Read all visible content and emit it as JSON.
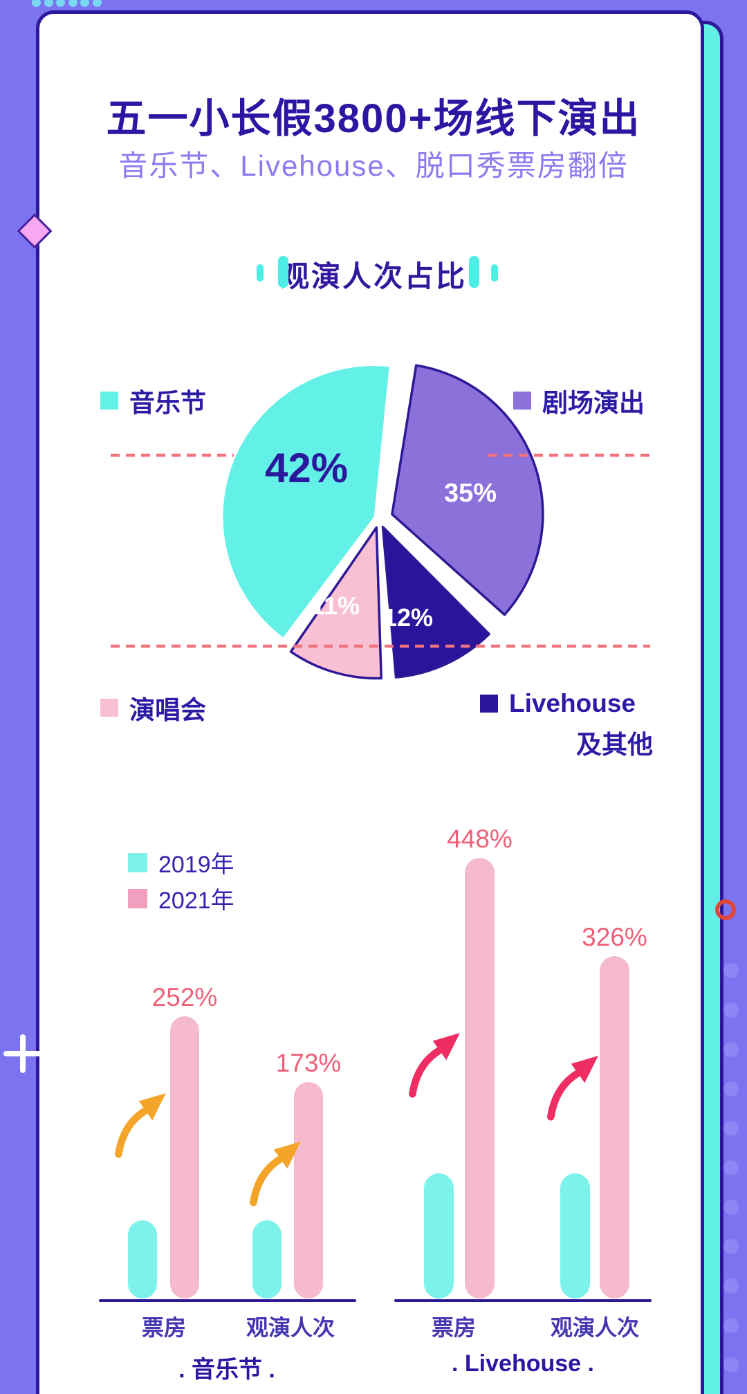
{
  "header": {
    "title": "五一小长假3800+场线下演出",
    "subtitle": "音乐节、Livehouse、脱口秀票房翻倍"
  },
  "pie_section": {
    "header": "观演人次占比",
    "legend": [
      {
        "label": "音乐节",
        "color": "#63F0E6"
      },
      {
        "label": "剧场演出",
        "color": "#8C71DB"
      },
      {
        "label": "演唱会",
        "color": "#F8C0D2"
      },
      {
        "label": "Livehouse",
        "label_line2": "及其他",
        "color": "#2B149B"
      }
    ]
  },
  "bar_section": {
    "legend": [
      {
        "label": "2019年",
        "color": "#7DF2EA"
      },
      {
        "label": "2021年",
        "color": "#F09FBE"
      }
    ]
  },
  "chart_data": [
    {
      "type": "pie",
      "title": "观演人次占比",
      "slices": [
        {
          "label": "音乐节",
          "value": 42,
          "display": "42%",
          "color": "#63F0E6",
          "label_color": "#2B189C"
        },
        {
          "label": "剧场演出",
          "value": 35,
          "display": "35%",
          "color": "#8C71DB",
          "label_color": "#FFFFFF"
        },
        {
          "label": "Livehouse及其他",
          "value": 12,
          "display": "12%",
          "color": "#2B149B",
          "label_color": "#FFFFFF"
        },
        {
          "label": "演唱会",
          "value": 11,
          "display": "11%",
          "color": "#F8C0D2",
          "label_color": "#FFFFFF"
        }
      ],
      "legend_position": "corners",
      "annotations": "two horizontal red dashed reference lines"
    },
    {
      "type": "bar",
      "title": ". 音乐节 .",
      "categories": [
        "票房",
        "观演人次"
      ],
      "series": [
        {
          "name": "2019年",
          "values": [
            100,
            100
          ],
          "labels": [
            "",
            ""
          ]
        },
        {
          "name": "2021年",
          "values": [
            252,
            173
          ],
          "labels": [
            "252%",
            "173%"
          ]
        }
      ],
      "ylabel": "",
      "xlabel": "",
      "grid": false,
      "annotations": "orange up-trend arrows beside 2021 bars"
    },
    {
      "type": "bar",
      "title": ". Livehouse .",
      "categories": [
        "票房",
        "观演人次"
      ],
      "series": [
        {
          "name": "2019年",
          "values": [
            100,
            100
          ],
          "labels": [
            "",
            ""
          ]
        },
        {
          "name": "2021年",
          "values": [
            448,
            326
          ],
          "labels": [
            "448%",
            "326%"
          ]
        }
      ],
      "ylabel": "",
      "xlabel": "",
      "grid": false,
      "annotations": "crimson up-trend arrows beside 2021 bars"
    }
  ],
  "colors": {
    "background": "#7B73F0",
    "card_border": "#2D189B",
    "card_white": "#FFFFFF",
    "card_cyan": "#62F0E6",
    "title_indigo": "#2B17A2",
    "subtitle_lavender": "#8C7BF0",
    "header_bars_cyan": "#4DEEE6",
    "dashed_line": "#F0737E",
    "bar_2019_cyan": "#7DF2EA",
    "bar_2021_pink": "#F5BACD",
    "pct_label_rose": "#EE5F78",
    "arrow_orange": "#F5A42A",
    "arrow_crimson": "#EE2E63",
    "diamond_pink": "#F6A8F0",
    "circle_red": "#E0453A",
    "side_dots_purple": "#8E86F4",
    "top_dots_cyan": "#79D8F2"
  }
}
